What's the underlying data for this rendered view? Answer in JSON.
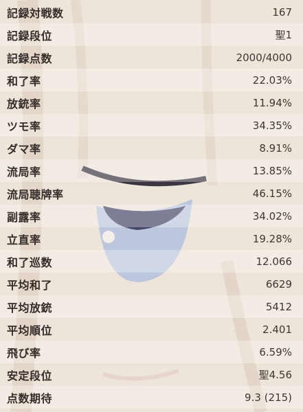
{
  "stats": [
    {
      "label": "記録対戦数",
      "value": "167"
    },
    {
      "label": "記録段位",
      "value": "聖1"
    },
    {
      "label": "記録点数",
      "value": "2000/4000"
    },
    {
      "label": "和了率",
      "value": "22.03%"
    },
    {
      "label": "放銃率",
      "value": "11.94%"
    },
    {
      "label": "ツモ率",
      "value": "34.35%"
    },
    {
      "label": "ダマ率",
      "value": "8.91%"
    },
    {
      "label": "流局率",
      "value": "13.85%"
    },
    {
      "label": "流局聴牌率",
      "value": "46.15%"
    },
    {
      "label": "副露率",
      "value": "34.02%"
    },
    {
      "label": "立直率",
      "value": "19.28%"
    },
    {
      "label": "和了巡数",
      "value": "12.066"
    },
    {
      "label": "平均和了",
      "value": "6629"
    },
    {
      "label": "平均放銃",
      "value": "5412"
    },
    {
      "label": "平均順位",
      "value": "2.401"
    },
    {
      "label": "飛び率",
      "value": "6.59%"
    },
    {
      "label": "安定段位",
      "value": "聖4.56"
    },
    {
      "label": "点数期待",
      "value": "9.3 (215)"
    }
  ]
}
